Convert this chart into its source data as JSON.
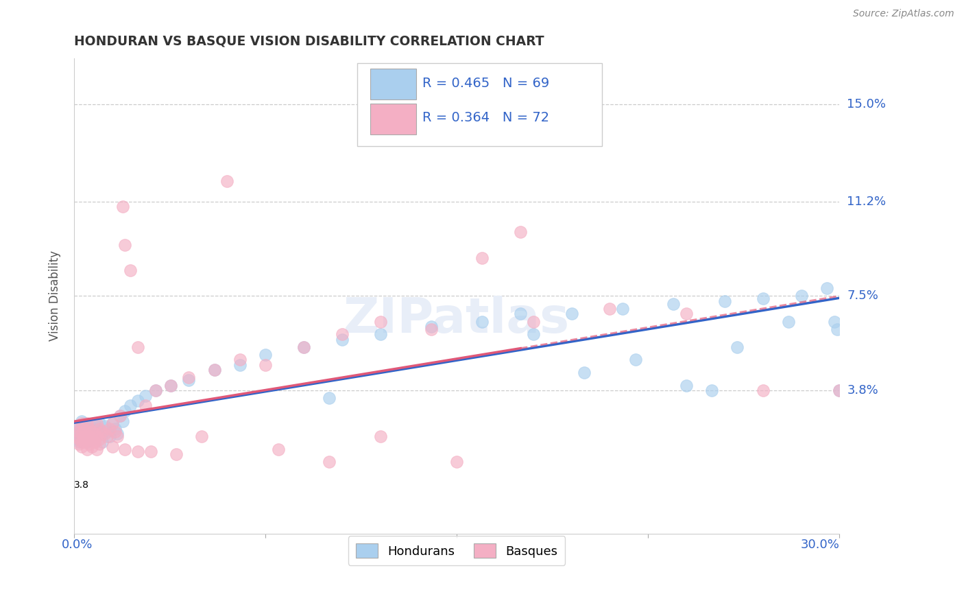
{
  "title": "HONDURAN VS BASQUE VISION DISABILITY CORRELATION CHART",
  "source": "Source: ZipAtlas.com",
  "ylabel": "Vision Disability",
  "ytick_labels": [
    "3.8%",
    "7.5%",
    "11.2%",
    "15.0%"
  ],
  "ytick_values": [
    0.038,
    0.075,
    0.112,
    0.15
  ],
  "xlim": [
    0.0,
    0.3
  ],
  "ylim": [
    -0.018,
    0.168
  ],
  "honduran_color": "#aacfee",
  "basque_color": "#f4afc4",
  "honduran_line_color": "#3264c8",
  "basque_line_color": "#e05878",
  "legend_text_color": "#3264c8",
  "legend_honduran_R": "R = 0.465",
  "legend_honduran_N": "N = 69",
  "legend_basque_R": "R = 0.364",
  "legend_basque_N": "N = 72",
  "watermark": "ZIPatlas",
  "honduran_scatter_x": [
    0.001,
    0.001,
    0.002,
    0.002,
    0.002,
    0.003,
    0.003,
    0.003,
    0.004,
    0.004,
    0.004,
    0.005,
    0.005,
    0.005,
    0.006,
    0.006,
    0.007,
    0.007,
    0.008,
    0.008,
    0.009,
    0.009,
    0.01,
    0.01,
    0.011,
    0.011,
    0.012,
    0.013,
    0.014,
    0.015,
    0.016,
    0.017,
    0.018,
    0.019,
    0.02,
    0.022,
    0.025,
    0.028,
    0.032,
    0.038,
    0.045,
    0.055,
    0.065,
    0.075,
    0.09,
    0.105,
    0.12,
    0.14,
    0.16,
    0.175,
    0.195,
    0.215,
    0.235,
    0.255,
    0.27,
    0.285,
    0.295,
    0.298,
    0.299,
    0.3,
    0.18,
    0.2,
    0.22,
    0.24,
    0.26,
    0.28,
    0.25,
    0.15,
    0.1
  ],
  "honduran_scatter_y": [
    0.022,
    0.019,
    0.021,
    0.024,
    0.018,
    0.02,
    0.023,
    0.026,
    0.022,
    0.019,
    0.025,
    0.021,
    0.018,
    0.024,
    0.02,
    0.023,
    0.022,
    0.019,
    0.025,
    0.021,
    0.023,
    0.02,
    0.022,
    0.025,
    0.021,
    0.018,
    0.024,
    0.022,
    0.02,
    0.025,
    0.023,
    0.021,
    0.028,
    0.026,
    0.03,
    0.032,
    0.034,
    0.036,
    0.038,
    0.04,
    0.042,
    0.046,
    0.048,
    0.052,
    0.055,
    0.058,
    0.06,
    0.063,
    0.065,
    0.068,
    0.068,
    0.07,
    0.072,
    0.073,
    0.074,
    0.075,
    0.078,
    0.065,
    0.062,
    0.038,
    0.06,
    0.045,
    0.05,
    0.04,
    0.055,
    0.065,
    0.038,
    0.145,
    0.035
  ],
  "basque_scatter_x": [
    0.001,
    0.001,
    0.002,
    0.002,
    0.003,
    0.003,
    0.003,
    0.004,
    0.004,
    0.005,
    0.005,
    0.005,
    0.006,
    0.006,
    0.007,
    0.007,
    0.008,
    0.008,
    0.009,
    0.009,
    0.01,
    0.01,
    0.011,
    0.012,
    0.013,
    0.014,
    0.015,
    0.016,
    0.017,
    0.018,
    0.019,
    0.02,
    0.022,
    0.025,
    0.028,
    0.032,
    0.038,
    0.045,
    0.055,
    0.065,
    0.075,
    0.09,
    0.105,
    0.12,
    0.14,
    0.16,
    0.175,
    0.002,
    0.003,
    0.004,
    0.005,
    0.006,
    0.007,
    0.008,
    0.009,
    0.01,
    0.015,
    0.02,
    0.025,
    0.03,
    0.04,
    0.05,
    0.06,
    0.08,
    0.1,
    0.12,
    0.15,
    0.18,
    0.21,
    0.24,
    0.27,
    0.3
  ],
  "basque_scatter_y": [
    0.02,
    0.024,
    0.019,
    0.022,
    0.021,
    0.018,
    0.025,
    0.02,
    0.023,
    0.019,
    0.022,
    0.025,
    0.02,
    0.023,
    0.019,
    0.022,
    0.021,
    0.018,
    0.025,
    0.02,
    0.023,
    0.019,
    0.022,
    0.021,
    0.02,
    0.023,
    0.025,
    0.022,
    0.02,
    0.028,
    0.11,
    0.095,
    0.085,
    0.055,
    0.032,
    0.038,
    0.04,
    0.043,
    0.046,
    0.05,
    0.048,
    0.055,
    0.06,
    0.065,
    0.062,
    0.09,
    0.1,
    0.017,
    0.016,
    0.018,
    0.015,
    0.017,
    0.016,
    0.018,
    0.015,
    0.017,
    0.016,
    0.015,
    0.014,
    0.014,
    0.013,
    0.02,
    0.12,
    0.015,
    0.01,
    0.02,
    0.01,
    0.065,
    0.07,
    0.068,
    0.038,
    0.038
  ]
}
